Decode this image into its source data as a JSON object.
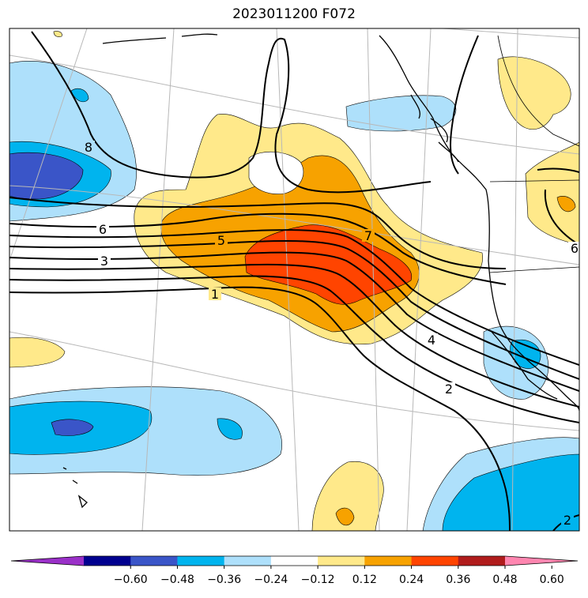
{
  "title": "2023011200 F072",
  "colorbar": {
    "ticks": [
      "−0.60",
      "−0.48",
      "−0.36",
      "−0.24",
      "−0.12",
      "0.12",
      "0.24",
      "0.36",
      "0.48",
      "0.60"
    ],
    "colors": [
      "#9a30c8",
      "#00008f",
      "#3a55c8",
      "#00b4ee",
      "#aee0fb",
      "#ffffff",
      "#ffe98a",
      "#f7a200",
      "#ff4400",
      "#b01c1c",
      "#ff86b0"
    ],
    "extend": "both"
  },
  "contours": {
    "labels": [
      "8",
      "6",
      "5",
      "7",
      "3",
      "1",
      "4",
      "2",
      "6",
      "2"
    ],
    "color": "#000000"
  }
}
